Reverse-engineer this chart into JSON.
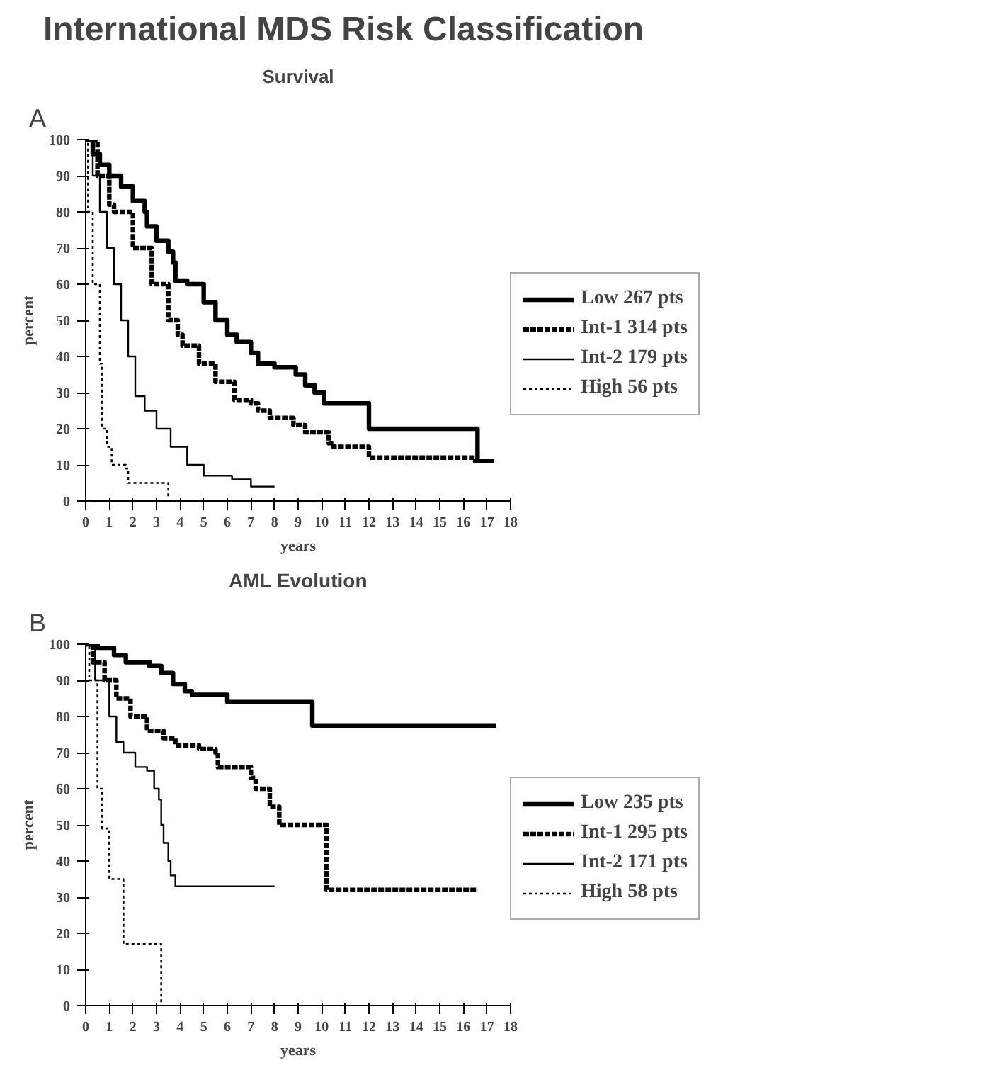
{
  "chart_data": [
    {
      "type": "step",
      "title": "International MDS Risk Classification",
      "subtitle": "Survival",
      "annotations": [
        "A"
      ],
      "xlabel": "years",
      "ylabel": "percent",
      "xlim": [
        0,
        18
      ],
      "ylim": [
        0,
        100
      ],
      "xticks": [
        0,
        1,
        2,
        3,
        4,
        5,
        6,
        7,
        8,
        9,
        10,
        11,
        12,
        13,
        14,
        15,
        16,
        17,
        18
      ],
      "yticks": [
        0,
        10,
        20,
        30,
        40,
        50,
        60,
        70,
        80,
        90,
        100
      ],
      "grid": false,
      "legend": "right",
      "marker": "none",
      "series": [
        {
          "name": "Low 267 pts",
          "color": "#000000",
          "line_style": "solid",
          "x": [
            0,
            0.3,
            0.6,
            1,
            1.5,
            2,
            2.5,
            2.6,
            3,
            3.5,
            3.7,
            3.8,
            4.3,
            5,
            5.5,
            6,
            6.4,
            7,
            7.3,
            8,
            8.9,
            9.3,
            9.7,
            10.1,
            12,
            16.6,
            17.3
          ],
          "values": [
            100,
            96,
            93,
            90,
            87,
            83,
            80,
            76,
            72,
            69,
            66,
            61,
            60,
            55,
            50,
            46,
            44,
            41,
            38,
            37,
            35,
            32,
            30,
            27,
            20,
            11,
            11
          ]
        },
        {
          "name": "Int-1 314 pts",
          "color": "#000000",
          "line_style": "dashed",
          "x": [
            0,
            0.5,
            1,
            1.2,
            2,
            2.8,
            3.5,
            3.9,
            4.1,
            4.8,
            5.5,
            6.3,
            7,
            7.3,
            7.8,
            8.8,
            9.3,
            10.3,
            10.5,
            12,
            16.5,
            17
          ],
          "values": [
            100,
            90,
            82,
            80,
            70,
            60,
            50,
            46,
            43,
            38,
            33,
            28,
            27,
            25,
            23,
            21,
            19,
            16,
            15,
            12,
            11,
            11
          ]
        },
        {
          "name": "Int-2 179 pts",
          "color": "#000000",
          "line_style": "solid",
          "x": [
            0,
            0.3,
            0.6,
            0.9,
            1.2,
            1.5,
            1.8,
            2.1,
            2.5,
            3,
            3.6,
            4.3,
            5,
            6.2,
            7,
            8
          ],
          "values": [
            100,
            90,
            80,
            70,
            60,
            50,
            40,
            29,
            25,
            20,
            15,
            10,
            7,
            6,
            4,
            4
          ]
        },
        {
          "name": "High 56 pts",
          "color": "#000000",
          "line_style": "dotted",
          "x": [
            0,
            0.1,
            0.3,
            0.6,
            0.7,
            0.9,
            1.1,
            1.7,
            1.8,
            3.5
          ],
          "values": [
            100,
            80,
            60,
            38,
            20,
            15,
            10,
            9,
            5,
            1
          ]
        }
      ]
    },
    {
      "type": "step",
      "title": "AML Evolution",
      "annotations": [
        "B"
      ],
      "xlabel": "years",
      "ylabel": "percent",
      "xlim": [
        0,
        18
      ],
      "ylim": [
        0,
        100
      ],
      "xticks": [
        0,
        1,
        2,
        3,
        4,
        5,
        6,
        7,
        8,
        9,
        10,
        11,
        12,
        13,
        14,
        15,
        16,
        17,
        18
      ],
      "yticks": [
        0,
        10,
        20,
        30,
        40,
        50,
        60,
        70,
        80,
        90,
        100
      ],
      "grid": false,
      "legend": "right",
      "marker": "none",
      "series": [
        {
          "name": "Low 235 pts",
          "color": "#000000",
          "line_style": "solid",
          "x": [
            0,
            0.5,
            1.2,
            1.7,
            2.7,
            3.2,
            3.7,
            4.2,
            4.5,
            6,
            9.6,
            17.4
          ],
          "values": [
            100,
            99,
            97,
            95,
            94,
            92,
            89,
            87,
            86,
            84,
            77.5,
            77.5
          ]
        },
        {
          "name": "Int-1 295 pts",
          "color": "#000000",
          "line_style": "dashed",
          "x": [
            0,
            0.3,
            0.8,
            1.3,
            1.9,
            2.6,
            3.3,
            3.8,
            4.8,
            5.5,
            5.6,
            7,
            7.2,
            7.8,
            8.2,
            10.2,
            16.6
          ],
          "values": [
            100,
            95,
            90,
            85,
            80,
            76,
            74,
            72,
            71,
            70,
            66,
            63,
            60,
            55,
            50,
            32,
            32
          ]
        },
        {
          "name": "Int-2 171 pts",
          "color": "#000000",
          "line_style": "solid",
          "x": [
            0,
            0.4,
            1,
            1.3,
            1.6,
            2.1,
            2.6,
            2.9,
            3.1,
            3.2,
            3.3,
            3.5,
            3.6,
            3.8,
            8
          ],
          "values": [
            100,
            90,
            80,
            73,
            70,
            66,
            65,
            60,
            57,
            50,
            45,
            40,
            36,
            33,
            33
          ]
        },
        {
          "name": "High 58 pts",
          "color": "#000000",
          "line_style": "dotted",
          "x": [
            0,
            0.15,
            0.5,
            0.7,
            1,
            1.6,
            3.2
          ],
          "values": [
            100,
            90,
            60,
            49,
            35,
            17,
            0
          ]
        }
      ]
    }
  ]
}
